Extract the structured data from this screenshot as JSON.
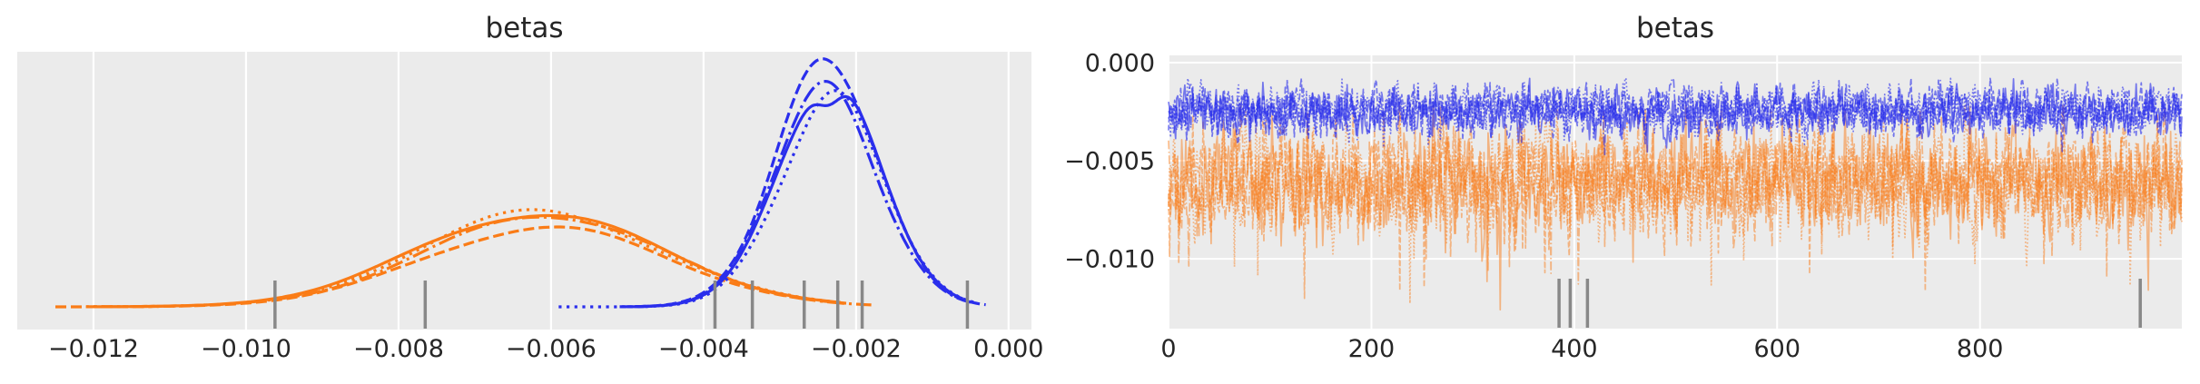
{
  "style": {
    "figure_background": "#ffffff",
    "panel_background": "#ebebeb",
    "grid_color": "#ffffff",
    "text_color": "#262626",
    "rug_color": "#888888",
    "chain_blue": "#2a2eec",
    "chain_orange": "#fa7c17"
  },
  "chart_data": [
    {
      "id": "posterior-kde",
      "type": "line",
      "subtype": "kde-density",
      "title": "betas",
      "xlabel": "",
      "ylabel": "",
      "legend_position": "none",
      "grid": "vertical",
      "xlim": [
        -0.013,
        0.0003
      ],
      "xticks": {
        "values": [
          -0.012,
          -0.01,
          -0.008,
          -0.006,
          -0.004,
          -0.002,
          0.0
        ],
        "labels": [
          "−0.012",
          "−0.010",
          "−0.008",
          "−0.006",
          "−0.004",
          "−0.002",
          "0.000"
        ]
      },
      "n_chains": 4,
      "chain_linestyles": [
        "solid",
        "dashed",
        "dashdot",
        "dotted"
      ],
      "series": [
        {
          "name": "beta-orange",
          "color": "#fa7c17",
          "kde_mean": -0.0061,
          "kde_sd": 0.00157,
          "peak_density_frac": [
            0.381,
            0.32,
            0.356,
            0.374
          ],
          "chain_support": [
            [
              -0.012,
              -0.0022
            ],
            [
              -0.0125,
              -0.0021
            ],
            [
              -0.0119,
              -0.0018
            ],
            [
              -0.0121,
              -0.0023
            ]
          ],
          "solid_dip": 0
        },
        {
          "name": "beta-blue",
          "color": "#2a2eec",
          "kde_mean": -0.00235,
          "kde_sd": 0.00068,
          "peak_density_frac": [
            0.88,
            0.947,
            0.85,
            0.82
          ],
          "chain_support": [
            [
              -0.005,
              -0.0006
            ],
            [
              -0.0051,
              -0.0003
            ],
            [
              -0.0049,
              -0.0005
            ],
            [
              -0.0059,
              -0.0004
            ]
          ],
          "solid_dip": 0.1
        }
      ],
      "rug_x": [
        -0.00962,
        -0.00765,
        -0.00385,
        -0.00336,
        -0.00268,
        -0.00224,
        -0.00192,
        -0.00054
      ]
    },
    {
      "id": "trace",
      "type": "line",
      "subtype": "mcmc-trace",
      "title": "betas",
      "xlabel": "",
      "ylabel": "",
      "legend_position": "none",
      "grid": "both",
      "xlim": [
        0,
        999
      ],
      "ylim": [
        -0.01356,
        0.00037
      ],
      "n_draws": 1000,
      "xticks": {
        "values": [
          0,
          200,
          400,
          600,
          800
        ],
        "labels": [
          "0",
          "200",
          "400",
          "600",
          "800"
        ]
      },
      "yticks": {
        "values": [
          0.0,
          -0.005,
          -0.01
        ],
        "labels": [
          "0.000",
          "−0.005",
          "−0.010"
        ]
      },
      "n_chains": 4,
      "chain_linestyles": [
        "solid",
        "dashed",
        "dashdot",
        "dotted"
      ],
      "series": [
        {
          "name": "beta-orange",
          "color": "#fa7c17",
          "mean": -0.0061,
          "sd": 0.00135,
          "min": -0.0126,
          "max": -0.0022,
          "alpha": 0.5,
          "spiky": true
        },
        {
          "name": "beta-blue",
          "color": "#2a2eec",
          "mean": -0.00245,
          "sd": 0.00062,
          "min": -0.0053,
          "max": -0.0008,
          "alpha": 0.62,
          "spiky": false
        }
      ],
      "rug_x": [
        385,
        396,
        413,
        958
      ]
    }
  ]
}
